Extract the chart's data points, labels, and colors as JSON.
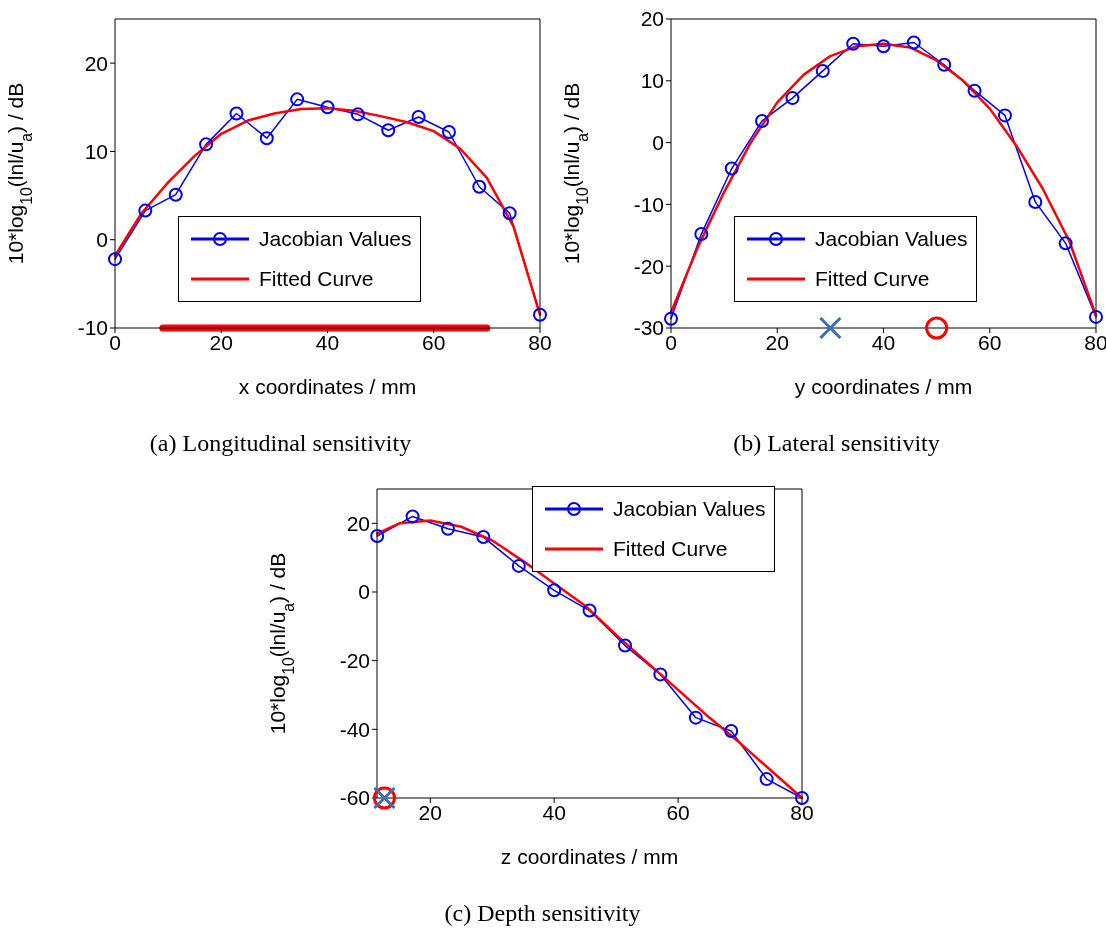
{
  "chart_data": [
    {
      "type": "line",
      "xlabel": "x coordinates / mm",
      "ylabel": "10*log$_{10}$(lnl/u$_{a}$) / dB",
      "xlim": [
        0,
        80
      ],
      "xticks": [
        0,
        20,
        40,
        60,
        80
      ],
      "ylim": [
        -10,
        25
      ],
      "yticks": [
        -10,
        0,
        10,
        20
      ],
      "legend": "bottom",
      "annotations": [
        "(a) Longitudinal sensitivity"
      ],
      "series": [
        {
          "type": "line",
          "color": "#ff0000",
          "marker": "none",
          "x": [
            9,
            70
          ],
          "values": [
            -10,
            -10
          ]
        },
        {
          "name": "Jacobian Values",
          "color": "#0000ff",
          "marker": "circle",
          "x": [
            0,
            5.71,
            11.43,
            17.14,
            22.86,
            28.57,
            34.29,
            40,
            45.71,
            51.43,
            57.14,
            62.86,
            68.57,
            74.29,
            80
          ],
          "values": [
            -2.2,
            3.3,
            5.1,
            10.8,
            14.3,
            11.5,
            15.9,
            15.0,
            14.2,
            12.4,
            13.9,
            12.2,
            6.0,
            3.0,
            -8.5
          ]
        },
        {
          "name": "Fitted Curve",
          "color": "#ff0000",
          "marker": "none",
          "x": [
            0,
            5,
            10,
            15,
            20,
            25,
            30,
            35,
            40,
            45,
            50,
            55,
            60,
            65,
            70,
            75,
            80
          ],
          "values": [
            -1.8,
            3,
            6.5,
            9.5,
            12,
            13.5,
            14.3,
            14.8,
            14.9,
            14.6,
            14,
            13.3,
            12.3,
            10.3,
            7,
            1.5,
            -8.5
          ]
        }
      ]
    },
    {
      "type": "line",
      "xlabel": "y coordinates / mm",
      "ylabel": "10*log$_{10}$(lnl/u$_{a}$) / dB",
      "xlim": [
        0,
        80
      ],
      "xticks": [
        0,
        20,
        40,
        60,
        80
      ],
      "ylim": [
        -30,
        20
      ],
      "yticks": [
        -30,
        -20,
        -10,
        0,
        10,
        20
      ],
      "legend": "bottom",
      "annotations": [
        "(b) Lateral sensitivity"
      ],
      "series": [
        {
          "name": "Jacobian Values",
          "color": "#0000ff",
          "marker": "circle",
          "x": [
            0,
            5.71,
            11.43,
            17.14,
            22.86,
            28.57,
            34.29,
            40,
            45.71,
            51.43,
            57.14,
            62.86,
            68.57,
            74.29,
            80
          ],
          "values": [
            -28.5,
            -14.8,
            -4.2,
            3.5,
            7.2,
            11.6,
            16,
            15.6,
            16.2,
            12.6,
            8.4,
            4.4,
            -9.6,
            -16.3,
            -28.2
          ]
        },
        {
          "name": "Fitted Curve",
          "color": "#ff0000",
          "marker": "none",
          "x": [
            0,
            5,
            10,
            15,
            20,
            25,
            30,
            35,
            40,
            45,
            50,
            55,
            60,
            65,
            70,
            75,
            80
          ],
          "values": [
            -27.5,
            -17,
            -8,
            0,
            6.5,
            11,
            14,
            15.6,
            16,
            15.4,
            13.3,
            10,
            5.5,
            -0.5,
            -7.5,
            -16,
            -28
          ]
        },
        {
          "type": "scatter",
          "color": "#3a6fb0",
          "marker": "cross",
          "x": [
            30
          ],
          "values": [
            -30
          ]
        },
        {
          "type": "scatter",
          "color": "#ff0000",
          "marker": "circle",
          "x": [
            50
          ],
          "values": [
            -30
          ]
        }
      ]
    },
    {
      "type": "line",
      "xlabel": "z coordinates / mm",
      "ylabel": "10*log$_{10}$(lnl/u$_{a}$) / dB",
      "xlim": [
        11.4,
        80
      ],
      "xticks": [
        20,
        40,
        60,
        80
      ],
      "ylim": [
        -60,
        30
      ],
      "yticks": [
        -60,
        -40,
        -20,
        0,
        20
      ],
      "legend": "top right",
      "annotations": [
        "(c) Depth sensitivity"
      ],
      "series": [
        {
          "name": "Jacobian Values",
          "color": "#0000ff",
          "marker": "circle",
          "x": [
            11.43,
            17.14,
            22.86,
            28.57,
            34.29,
            40,
            45.71,
            51.43,
            57.14,
            62.86,
            68.57,
            74.29,
            80
          ],
          "values": [
            16.3,
            22,
            18.4,
            16,
            7.6,
            0.5,
            -5.4,
            -15.6,
            -24,
            -36.6,
            -40.5,
            -54.5,
            -60
          ]
        },
        {
          "name": "Fitted Curve",
          "color": "#ff0000",
          "marker": "none",
          "x": [
            11.43,
            15,
            20,
            25,
            30,
            35,
            40,
            45,
            50,
            55,
            60,
            65,
            70,
            75,
            80
          ],
          "values": [
            17,
            20,
            20.8,
            19,
            15,
            9,
            2.5,
            -4,
            -12.5,
            -20.5,
            -28.5,
            -36.5,
            -44,
            -52,
            -60
          ]
        },
        {
          "type": "scatter",
          "color": "#ff0000",
          "marker": "circle",
          "x": [
            12.6
          ],
          "values": [
            -60
          ]
        },
        {
          "type": "scatter",
          "color": "#3a6fb0",
          "marker": "cross",
          "x": [
            12.6
          ],
          "values": [
            -60
          ]
        }
      ]
    }
  ]
}
